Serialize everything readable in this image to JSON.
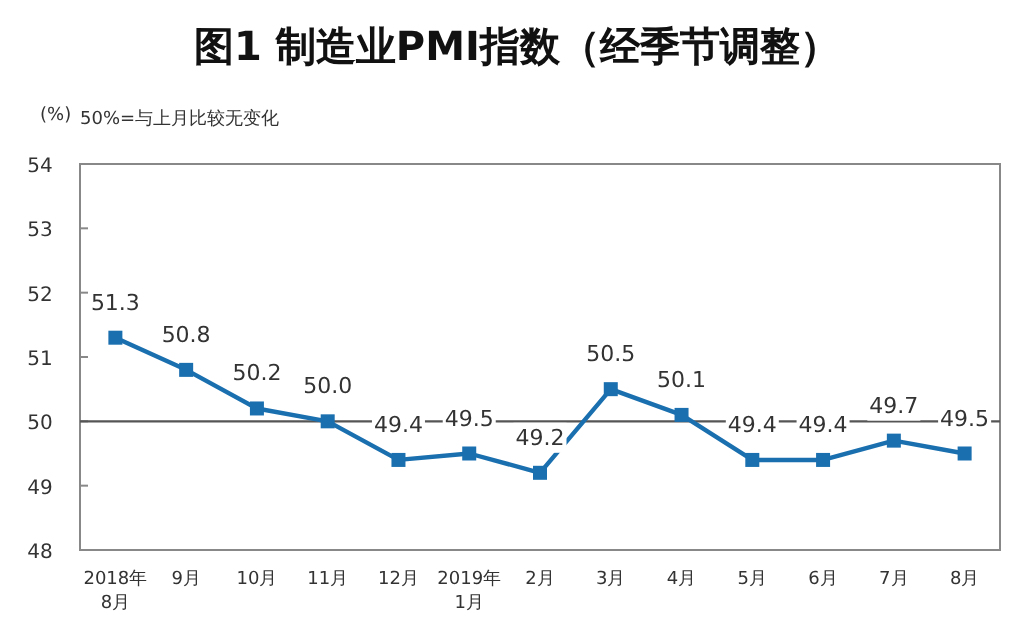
{
  "chart_data": {
    "type": "line",
    "title": "图1  制造业PMI指数（经季节调整）",
    "ylabel": "(%)",
    "annotations": [
      "50%=与上月比较无变化"
    ],
    "categories": [
      "2018年\n8月",
      "9月",
      "10月",
      "11月",
      "12月",
      "2019年\n1月",
      "2月",
      "3月",
      "4月",
      "5月",
      "6月",
      "7月",
      "8月"
    ],
    "series": [
      {
        "color": "#1a6faf",
        "values": [
          51.3,
          50.8,
          50.2,
          50.0,
          49.4,
          49.5,
          49.2,
          50.5,
          50.1,
          49.4,
          49.4,
          49.7,
          49.5
        ],
        "value_labels": [
          "51.3",
          "50.8",
          "50.2",
          "50.0",
          "49.4",
          "49.5",
          "49.2",
          "50.5",
          "50.1",
          "49.4",
          "49.4",
          "49.7",
          "49.5"
        ]
      }
    ],
    "ylim": [
      48,
      54
    ],
    "yticks": [
      48,
      49,
      50,
      51,
      52,
      53,
      54
    ],
    "ref_lines": [
      {
        "axis": "y",
        "value": 50,
        "color": "#555555"
      }
    ],
    "marker": "square",
    "grid": false
  }
}
